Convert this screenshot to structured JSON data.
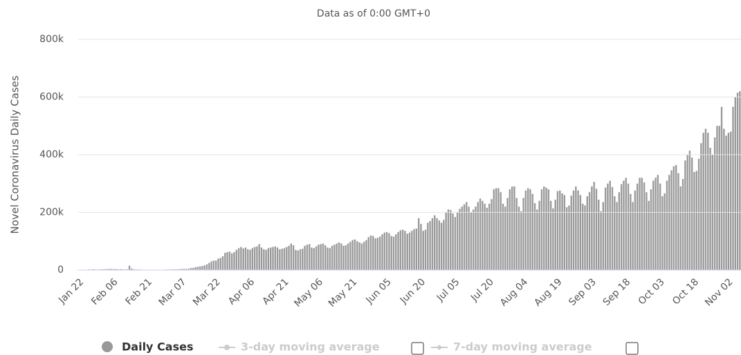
{
  "chart_data": {
    "type": "bar",
    "subtitle": "Data as of 0:00 GMT+0",
    "y_label": "Novel Coronavirus Daily Cases",
    "series": [
      {
        "name": "Daily Cases",
        "color": "#999999",
        "values": [
          100,
          300,
          500,
          700,
          2000,
          1700,
          2600,
          2000,
          1700,
          2100,
          2600,
          2800,
          3200,
          3900,
          3700,
          3200,
          3400,
          2600,
          3000,
          2500,
          2000,
          2500,
          15000,
          5000,
          2700,
          2100,
          2000,
          1900,
          600,
          600,
          900,
          1000,
          900,
          800,
          800,
          900,
          1100,
          1300,
          1800,
          1800,
          2000,
          2400,
          2300,
          2800,
          2900,
          4000,
          3800,
          4000,
          4500,
          7000,
          7500,
          10000,
          11000,
          13000,
          14000,
          16000,
          20000,
          25000,
          30000,
          33000,
          33000,
          40000,
          42000,
          48000,
          60000,
          62000,
          64000,
          58000,
          62000,
          70000,
          76000,
          80000,
          75000,
          78000,
          72000,
          70000,
          76000,
          80000,
          82000,
          90000,
          78000,
          72000,
          70000,
          76000,
          78000,
          80000,
          82000,
          78000,
          72000,
          74000,
          76000,
          80000,
          84000,
          92000,
          86000,
          70000,
          68000,
          72000,
          74000,
          84000,
          88000,
          90000,
          78000,
          76000,
          82000,
          88000,
          90000,
          92000,
          86000,
          78000,
          76000,
          84000,
          88000,
          92000,
          96000,
          92000,
          84000,
          86000,
          92000,
          98000,
          104000,
          106000,
          100000,
          96000,
          92000,
          98000,
          104000,
          114000,
          120000,
          118000,
          110000,
          112000,
          116000,
          124000,
          130000,
          132000,
          128000,
          118000,
          116000,
          124000,
          132000,
          138000,
          140000,
          136000,
          126000,
          130000,
          136000,
          142000,
          144000,
          180000,
          160000,
          136000,
          140000,
          164000,
          170000,
          180000,
          190000,
          180000,
          172000,
          164000,
          174000,
          200000,
          210000,
          208000,
          196000,
          184000,
          200000,
          212000,
          220000,
          228000,
          236000,
          220000,
          200000,
          210000,
          220000,
          236000,
          248000,
          240000,
          230000,
          216000,
          230000,
          246000,
          280000,
          284000,
          284000,
          270000,
          230000,
          220000,
          250000,
          280000,
          290000,
          290000,
          250000,
          220000,
          204000,
          250000,
          276000,
          284000,
          280000,
          264000,
          232000,
          210000,
          240000,
          280000,
          290000,
          286000,
          280000,
          240000,
          214000,
          244000,
          274000,
          276000,
          266000,
          260000,
          218000,
          224000,
          258000,
          276000,
          290000,
          276000,
          260000,
          230000,
          224000,
          256000,
          270000,
          290000,
          306000,
          282000,
          244000,
          204000,
          236000,
          286000,
          300000,
          310000,
          288000,
          256000,
          236000,
          270000,
          298000,
          310000,
          320000,
          300000,
          264000,
          236000,
          276000,
          300000,
          320000,
          320000,
          304000,
          270000,
          240000,
          280000,
          310000,
          320000,
          330000,
          300000,
          256000,
          266000,
          310000,
          330000,
          346000,
          360000,
          364000,
          336000,
          290000,
          316000,
          380000,
          400000,
          414000,
          390000,
          340000,
          344000,
          386000,
          440000,
          476000,
          490000,
          476000,
          424000,
          400000,
          460000,
          500000,
          500000,
          566000,
          490000,
          466000,
          476000,
          480000,
          566000,
          600000,
          615000,
          620000
        ]
      }
    ],
    "moving_averages": [
      "3-day moving average",
      "7-day moving average"
    ],
    "categories": [
      "Jan 22",
      null,
      null,
      null,
      null,
      null,
      null,
      null,
      null,
      null,
      null,
      null,
      null,
      null,
      null,
      "Feb 06",
      null,
      null,
      null,
      null,
      null,
      null,
      null,
      null,
      null,
      null,
      null,
      null,
      null,
      null,
      "Feb 21",
      null,
      null,
      null,
      null,
      null,
      null,
      null,
      null,
      null,
      null,
      null,
      null,
      null,
      null,
      "Mar 07",
      null,
      null,
      null,
      null,
      null,
      null,
      null,
      null,
      null,
      null,
      null,
      null,
      null,
      null,
      "Mar 22",
      null,
      null,
      null,
      null,
      null,
      null,
      null,
      null,
      null,
      null,
      null,
      null,
      null,
      null,
      "Apr 06",
      null,
      null,
      null,
      null,
      null,
      null,
      null,
      null,
      null,
      null,
      null,
      null,
      null,
      null,
      "Apr 21",
      null,
      null,
      null,
      null,
      null,
      null,
      null,
      null,
      null,
      null,
      null,
      null,
      null,
      null,
      "May 06",
      null,
      null,
      null,
      null,
      null,
      null,
      null,
      null,
      null,
      null,
      null,
      null,
      null,
      null,
      "May 21",
      null,
      null,
      null,
      null,
      null,
      null,
      null,
      null,
      null,
      null,
      null,
      null,
      null,
      null,
      "Jun 05",
      null,
      null,
      null,
      null,
      null,
      null,
      null,
      null,
      null,
      null,
      null,
      null,
      null,
      null,
      "Jun 20",
      null,
      null,
      null,
      null,
      null,
      null,
      null,
      null,
      null,
      null,
      null,
      null,
      null,
      null,
      "Jul 05",
      null,
      null,
      null,
      null,
      null,
      null,
      null,
      null,
      null,
      null,
      null,
      null,
      null,
      null,
      "Jul 20",
      null,
      null,
      null,
      null,
      null,
      null,
      null,
      null,
      null,
      null,
      null,
      null,
      null,
      null,
      "Aug 04",
      null,
      null,
      null,
      null,
      null,
      null,
      null,
      null,
      null,
      null,
      null,
      null,
      null,
      null,
      "Aug 19",
      null,
      null,
      null,
      null,
      null,
      null,
      null,
      null,
      null,
      null,
      null,
      null,
      null,
      null,
      "Sep 03",
      null,
      null,
      null,
      null,
      null,
      null,
      null,
      null,
      null,
      null,
      null,
      null,
      null,
      null,
      "Sep 18",
      null,
      null,
      null,
      null,
      null,
      null,
      null,
      null,
      null,
      null,
      null,
      null,
      null,
      null,
      "Oct 03",
      null,
      null,
      null,
      null,
      null,
      null,
      null,
      null,
      null,
      null,
      null,
      null,
      null,
      null,
      "Oct 18",
      null,
      null,
      null,
      null,
      null,
      null,
      null,
      null,
      null,
      null,
      null,
      null,
      null,
      null,
      "Nov 02",
      null,
      null,
      null,
      null,
      null
    ],
    "ylim": [
      0,
      800000
    ],
    "yticks": [
      0,
      {
        "value": 200000,
        "label": "200k"
      },
      {
        "value": 400000,
        "label": "400k"
      },
      {
        "value": 600000,
        "label": "600k"
      },
      {
        "value": 800000,
        "label": "800k"
      }
    ],
    "grid": true
  }
}
